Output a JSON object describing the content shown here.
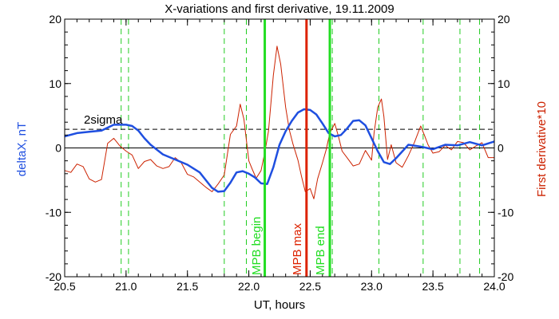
{
  "chart_data": {
    "type": "line",
    "title": "X-variations and first derivative, 19.11.2009",
    "xlabel": "UT, hours",
    "ylabel_left": "deltaX, nT",
    "ylabel_right": "First derivative*10",
    "xlim": [
      20.5,
      24.0
    ],
    "ylim": [
      -20,
      20
    ],
    "x_ticks": [
      "20.5",
      "21.0",
      "21.5",
      "22.0",
      "22.5",
      "23.0",
      "23.5",
      "24.0"
    ],
    "y_ticks_left": [
      "-20",
      "-10",
      "0",
      "10",
      "20"
    ],
    "y_ticks_right": [
      "-20",
      "-10",
      "0",
      "10",
      "20"
    ],
    "grid": false,
    "threshold": {
      "label": "2sigma",
      "value": 2.9
    },
    "colors": {
      "deltaX": "#1f4fe0",
      "derivative": "#cc2200",
      "mpb": "#22dd22",
      "mpb_max": "#dd2200",
      "dashed": "#22cc22",
      "axis": "#000000"
    },
    "markers": {
      "mpb_begin": {
        "x": 22.13,
        "label": "MPB begin"
      },
      "mpb_max": {
        "x": 22.47,
        "label": "MPB max"
      },
      "mpb_end": {
        "x": 22.66,
        "label": "MPB end"
      }
    },
    "dashed_lines_x": [
      20.96,
      21.02,
      21.8,
      21.98,
      22.68,
      23.06,
      23.42,
      23.72,
      23.88
    ],
    "series": [
      {
        "key": "deltaX",
        "x": [
          20.5,
          20.6,
          20.7,
          20.8,
          20.9,
          21.0,
          21.05,
          21.1,
          21.15,
          21.2,
          21.3,
          21.4,
          21.5,
          21.6,
          21.7,
          21.75,
          21.8,
          21.85,
          21.9,
          21.95,
          22.0,
          22.05,
          22.1,
          22.15,
          22.2,
          22.25,
          22.3,
          22.35,
          22.4,
          22.45,
          22.5,
          22.55,
          22.6,
          22.65,
          22.7,
          22.75,
          22.8,
          22.85,
          22.9,
          22.95,
          23.0,
          23.05,
          23.1,
          23.15,
          23.2,
          23.3,
          23.4,
          23.5,
          23.6,
          23.7,
          23.8,
          23.9,
          24.0
        ],
        "y": [
          1.8,
          2.3,
          2.5,
          2.7,
          3.6,
          3.6,
          3.4,
          2.7,
          1.5,
          0.5,
          -1.0,
          -1.8,
          -2.6,
          -3.8,
          -6.2,
          -6.8,
          -6.7,
          -5.4,
          -3.8,
          -3.6,
          -4.0,
          -4.6,
          -5.5,
          -5.6,
          -3.0,
          0.5,
          2.6,
          4.2,
          5.5,
          6.0,
          5.9,
          5.2,
          3.8,
          2.3,
          1.8,
          2.0,
          3.0,
          4.2,
          4.3,
          3.5,
          1.5,
          -0.5,
          -2.2,
          -2.5,
          -1.6,
          0.5,
          0.2,
          -0.2,
          0.5,
          0.4,
          0.9,
          0.4,
          1.0
        ]
      },
      {
        "key": "derivative",
        "x": [
          20.5,
          20.55,
          20.6,
          20.65,
          20.7,
          20.75,
          20.8,
          20.85,
          20.9,
          20.95,
          21.0,
          21.05,
          21.1,
          21.15,
          21.2,
          21.25,
          21.3,
          21.35,
          21.4,
          21.45,
          21.5,
          21.55,
          21.6,
          21.65,
          21.7,
          21.75,
          21.8,
          21.85,
          21.9,
          21.93,
          21.96,
          22.0,
          22.03,
          22.06,
          22.1,
          22.13,
          22.16,
          22.2,
          22.23,
          22.26,
          22.3,
          22.33,
          22.36,
          22.4,
          22.43,
          22.46,
          22.5,
          22.53,
          22.56,
          22.6,
          22.63,
          22.66,
          22.7,
          22.73,
          22.76,
          22.8,
          22.85,
          22.9,
          22.95,
          23.0,
          23.02,
          23.05,
          23.08,
          23.1,
          23.13,
          23.16,
          23.2,
          23.25,
          23.3,
          23.35,
          23.4,
          23.43,
          23.46,
          23.5,
          23.55,
          23.6,
          23.65,
          23.7,
          23.75,
          23.8,
          23.85,
          23.9,
          23.95,
          24.0
        ],
        "y": [
          -3.5,
          -3.8,
          -2.5,
          -2.9,
          -4.8,
          -5.3,
          -4.9,
          0.7,
          1.5,
          0.3,
          -0.5,
          -1.1,
          -3.2,
          -2.1,
          -1.8,
          -2.8,
          -3.2,
          -2.9,
          -1.5,
          -2.3,
          -4.1,
          -4.5,
          -5.3,
          -6.1,
          -6.8,
          -5.6,
          -4.2,
          2.1,
          3.4,
          6.8,
          4.5,
          -2.0,
          -3.4,
          -4.7,
          -3.5,
          -0.7,
          2.6,
          11.3,
          15.8,
          13.0,
          6.3,
          2.8,
          0.6,
          -1.9,
          -4.5,
          -6.8,
          -6.3,
          -7.9,
          -4.8,
          -2.3,
          -0.3,
          2.3,
          3.8,
          1.8,
          -0.5,
          -1.5,
          -2.8,
          -2.5,
          -0.4,
          -1.9,
          2.3,
          6.3,
          7.6,
          4.9,
          -1.8,
          0.5,
          -2.3,
          -3.0,
          -1.2,
          0.9,
          3.4,
          2.0,
          0.5,
          -0.8,
          -0.6,
          0.4,
          -0.3,
          1.0,
          0.8,
          -0.3,
          0.3,
          0.8,
          -1.5,
          -1.5
        ]
      }
    ]
  }
}
